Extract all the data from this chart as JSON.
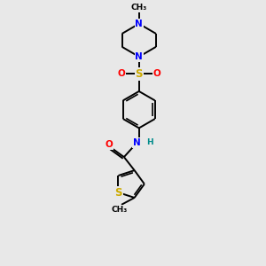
{
  "bg_color": "#e8e8e8",
  "bond_color": "#000000",
  "N_color": "#0000ff",
  "O_color": "#ff0000",
  "S_color": "#ccaa00",
  "H_color": "#008b8b",
  "C_color": "#000000",
  "figsize": [
    3.0,
    3.0
  ],
  "dpi": 100,
  "xlim": [
    0,
    10
  ],
  "ylim": [
    0,
    13
  ]
}
